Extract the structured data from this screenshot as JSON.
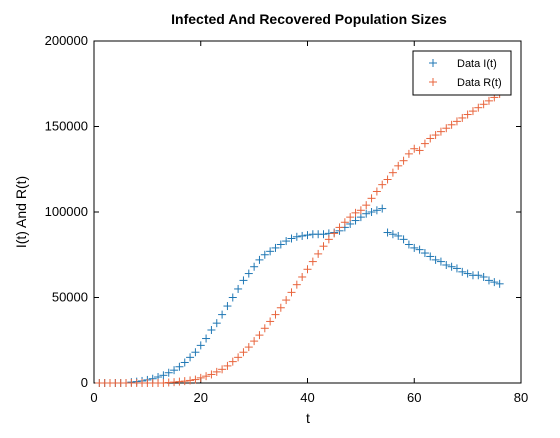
{
  "chart_data": {
    "type": "scatter",
    "title": "Infected And Recovered Population Sizes",
    "xlabel": "t",
    "ylabel": "I(t) And R(t)",
    "xlim": [
      0,
      80
    ],
    "ylim": [
      0,
      200000
    ],
    "x_ticks": [
      0,
      20,
      40,
      60,
      80
    ],
    "y_ticks": [
      0,
      50000,
      100000,
      150000,
      200000
    ],
    "x_tick_labels": [
      "0",
      "20",
      "40",
      "60",
      "80"
    ],
    "y_tick_labels": [
      "0",
      "50000",
      "100000",
      "150000",
      "200000"
    ],
    "grid": false,
    "legend_position": "top-right",
    "marker": "+",
    "series": [
      {
        "name": "Data I(t)",
        "color": "#1f77b4",
        "x": [
          1,
          2,
          3,
          4,
          5,
          6,
          7,
          8,
          9,
          10,
          11,
          12,
          13,
          14,
          15,
          16,
          17,
          18,
          19,
          20,
          21,
          22,
          23,
          24,
          25,
          26,
          27,
          28,
          29,
          30,
          31,
          32,
          33,
          34,
          35,
          36,
          37,
          38,
          39,
          40,
          41,
          42,
          43,
          44,
          45,
          46,
          47,
          48,
          49,
          50,
          51,
          52,
          53,
          54,
          55,
          56,
          57,
          58,
          59,
          60,
          61,
          62,
          63,
          64,
          65,
          66,
          67,
          68,
          69,
          70,
          71,
          72,
          73,
          74,
          75,
          76
        ],
        "y": [
          0,
          0,
          0,
          0,
          0,
          0,
          500,
          800,
          1200,
          1800,
          2500,
          3500,
          4500,
          6000,
          7500,
          9500,
          12000,
          15000,
          18000,
          22000,
          26000,
          31000,
          35000,
          40000,
          45000,
          50000,
          55000,
          60000,
          64000,
          68000,
          72000,
          75000,
          77000,
          79000,
          81000,
          83000,
          84500,
          85500,
          86000,
          86500,
          87000,
          87000,
          87000,
          87500,
          88000,
          89000,
          91000,
          93000,
          95000,
          97000,
          99000,
          100000,
          101000,
          102000,
          88000,
          87000,
          86000,
          84000,
          81000,
          79000,
          78000,
          76000,
          74000,
          72000,
          71000,
          69000,
          68000,
          67000,
          65000,
          64000,
          63000,
          63000,
          62000,
          60000,
          59000,
          58000
        ]
      },
      {
        "name": "Data R(t)",
        "color": "#e8643c",
        "x": [
          1,
          2,
          3,
          4,
          5,
          6,
          7,
          8,
          9,
          10,
          11,
          12,
          13,
          14,
          15,
          16,
          17,
          18,
          19,
          20,
          21,
          22,
          23,
          24,
          25,
          26,
          27,
          28,
          29,
          30,
          31,
          32,
          33,
          34,
          35,
          36,
          37,
          38,
          39,
          40,
          41,
          42,
          43,
          44,
          45,
          46,
          47,
          48,
          49,
          50,
          51,
          52,
          53,
          54,
          55,
          56,
          57,
          58,
          59,
          60,
          61,
          62,
          63,
          64,
          65,
          66,
          67,
          68,
          69,
          70,
          71,
          72,
          73,
          74,
          75,
          76
        ],
        "y": [
          0,
          0,
          0,
          0,
          0,
          0,
          0,
          0,
          0,
          0,
          0,
          0,
          0,
          300,
          500,
          800,
          1100,
          1500,
          2000,
          3000,
          4000,
          5000,
          6500,
          8000,
          10000,
          12500,
          15000,
          18000,
          21000,
          24500,
          28000,
          32000,
          36000,
          40000,
          44000,
          48500,
          53000,
          57500,
          62000,
          66500,
          71000,
          75500,
          80000,
          84000,
          87500,
          91000,
          94000,
          97000,
          99500,
          101000,
          104000,
          108000,
          112000,
          116000,
          119000,
          123000,
          127000,
          130000,
          134000,
          137000,
          136000,
          140000,
          143000,
          145000,
          147000,
          149000,
          151000,
          153000,
          155000,
          157000,
          159000,
          161000,
          163000,
          165000,
          167000,
          169000
        ]
      }
    ]
  }
}
